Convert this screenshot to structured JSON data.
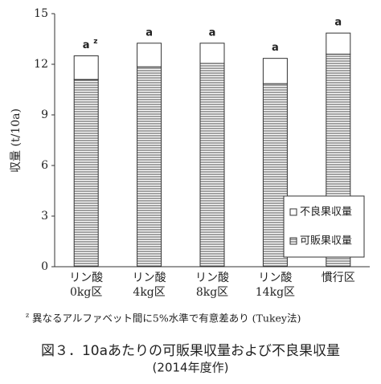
{
  "chart_data": {
    "type": "stacked-bar",
    "y_label": "収量 (t/10a)",
    "categories": [
      [
        "リン酸",
        "0kg区"
      ],
      [
        "リン酸",
        "4kg区"
      ],
      [
        "リン酸",
        "8kg区"
      ],
      [
        "リン酸",
        "14kg区"
      ],
      [
        "慣行区"
      ]
    ],
    "series": [
      {
        "name": "可販果収量",
        "color": "#ffffff",
        "pattern": "#444444",
        "values": [
          11.1,
          11.85,
          12.05,
          10.85,
          12.6
        ]
      },
      {
        "name": "不良果収量",
        "color": "#ffffff",
        "values": [
          1.4,
          1.4,
          1.2,
          1.5,
          1.25
        ]
      }
    ],
    "significance": [
      "a",
      "a",
      "a",
      "a",
      "a"
    ],
    "significance_note_marker": "z",
    "ylim": [
      0,
      15
    ],
    "yticks": [
      0,
      3,
      6,
      9,
      12,
      15
    ],
    "legend": "lower-right",
    "footnote": "異なるアルファベット間に5%水準で有意差あり (Tukey法)",
    "caption": "図３．10aあたりの可販果収量および不良果収量",
    "caption_sub": "(2014年度作)"
  }
}
